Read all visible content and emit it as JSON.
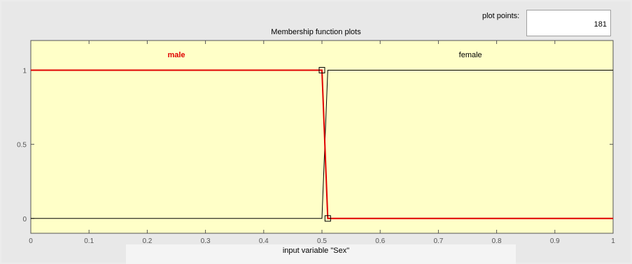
{
  "plot_points": {
    "label": "plot points:",
    "value": "181"
  },
  "plot_title": "Membership function plots",
  "xlabel": "input variable \"Sex\"",
  "colors": {
    "plot_bg": "#ffffc8",
    "selected": "#e00000",
    "unselected": "#000000"
  },
  "chart_data": {
    "type": "line",
    "title": "Membership function plots",
    "xlabel": "input variable \"Sex\"",
    "ylabel": "",
    "xlim": [
      0,
      1
    ],
    "ylim": [
      -0.1,
      1.2
    ],
    "xticks": [
      "0",
      "0.1",
      "0.2",
      "0.3",
      "0.4",
      "0.5",
      "0.6",
      "0.7",
      "0.8",
      "0.9",
      "1"
    ],
    "yticks": [
      "0",
      "0.5",
      "1"
    ],
    "grid": false,
    "series": [
      {
        "name": "male",
        "selected": true,
        "color": "#e00000",
        "x": [
          0,
          0.5,
          0.51,
          1
        ],
        "y": [
          1,
          1,
          0,
          0
        ]
      },
      {
        "name": "female",
        "selected": false,
        "color": "#000000",
        "x": [
          0,
          0.5,
          0.51,
          1
        ],
        "y": [
          0,
          0,
          1,
          1
        ]
      }
    ]
  }
}
